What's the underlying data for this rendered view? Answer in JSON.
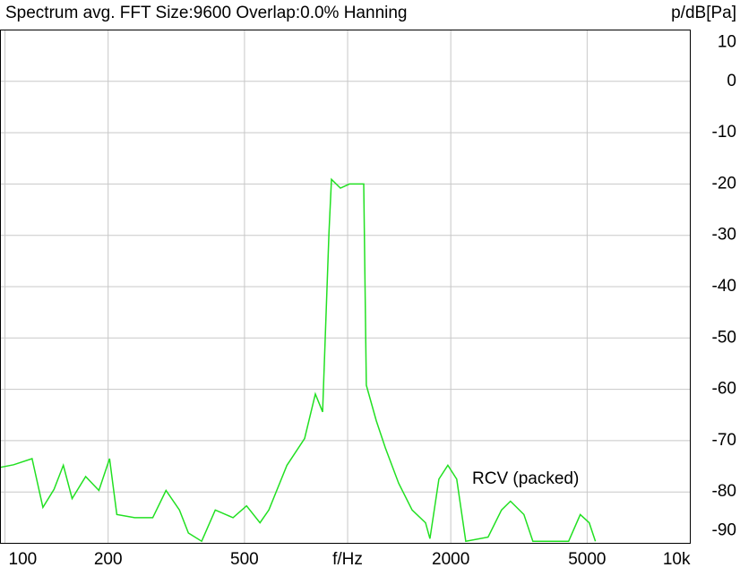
{
  "chart_data": {
    "type": "line",
    "title": "Spectrum avg.  FFT Size:9600  Overlap:0.0%  Hanning",
    "y_label": "p/dB[Pa]",
    "annotation": "RCV (packed)",
    "x_log": true,
    "grid": true,
    "xlim": [
      97,
      10000
    ],
    "xticks": [
      100,
      200,
      500,
      {
        "value": 1000,
        "label": "f/Hz"
      },
      2000,
      5000,
      {
        "value": 10000,
        "label": "10k"
      }
    ],
    "ylim": [
      -90,
      10
    ],
    "yticks": [
      10,
      0,
      -10,
      -20,
      -30,
      -40,
      -50,
      -60,
      -70,
      -80,
      -90
    ],
    "series": [
      {
        "name": "RCV (packed)",
        "color": "#22e022",
        "x": [
          97,
          106,
          120,
          129,
          139,
          148,
          157,
          172,
          188,
          202,
          212,
          239,
          270,
          295,
          323,
          343,
          375,
          411,
          463,
          507,
          555,
          589,
          665,
          749,
          805,
          845,
          882,
          897,
          953,
          1012,
          1075,
          1114,
          1134,
          1212,
          1288,
          1409,
          1542,
          1688,
          1739,
          1847,
          1961,
          2082,
          2212,
          2570,
          2812,
          2987,
          3269,
          3472,
          4416,
          4775,
          5070,
          5287
        ],
        "values": [
          -75.2,
          -74.7,
          -73.5,
          -83,
          -79.5,
          -74.8,
          -81.3,
          -77,
          -79.7,
          -73.5,
          -84.4,
          -85,
          -85,
          -79.7,
          -83.5,
          -88,
          -89.6,
          -83.5,
          -85,
          -82.7,
          -86,
          -83.5,
          -74.8,
          -69.6,
          -60.9,
          -64.4,
          -29.5,
          -19.1,
          -20.8,
          -20,
          -20,
          -20,
          -59.2,
          -66.1,
          -71.4,
          -78.3,
          -83.5,
          -86,
          -89.1,
          -77.5,
          -74.8,
          -77.5,
          -89.6,
          -88.8,
          -83.5,
          -81.8,
          -84.4,
          -89.6,
          -89.6,
          -84.4,
          -86,
          -89.6
        ]
      }
    ]
  }
}
